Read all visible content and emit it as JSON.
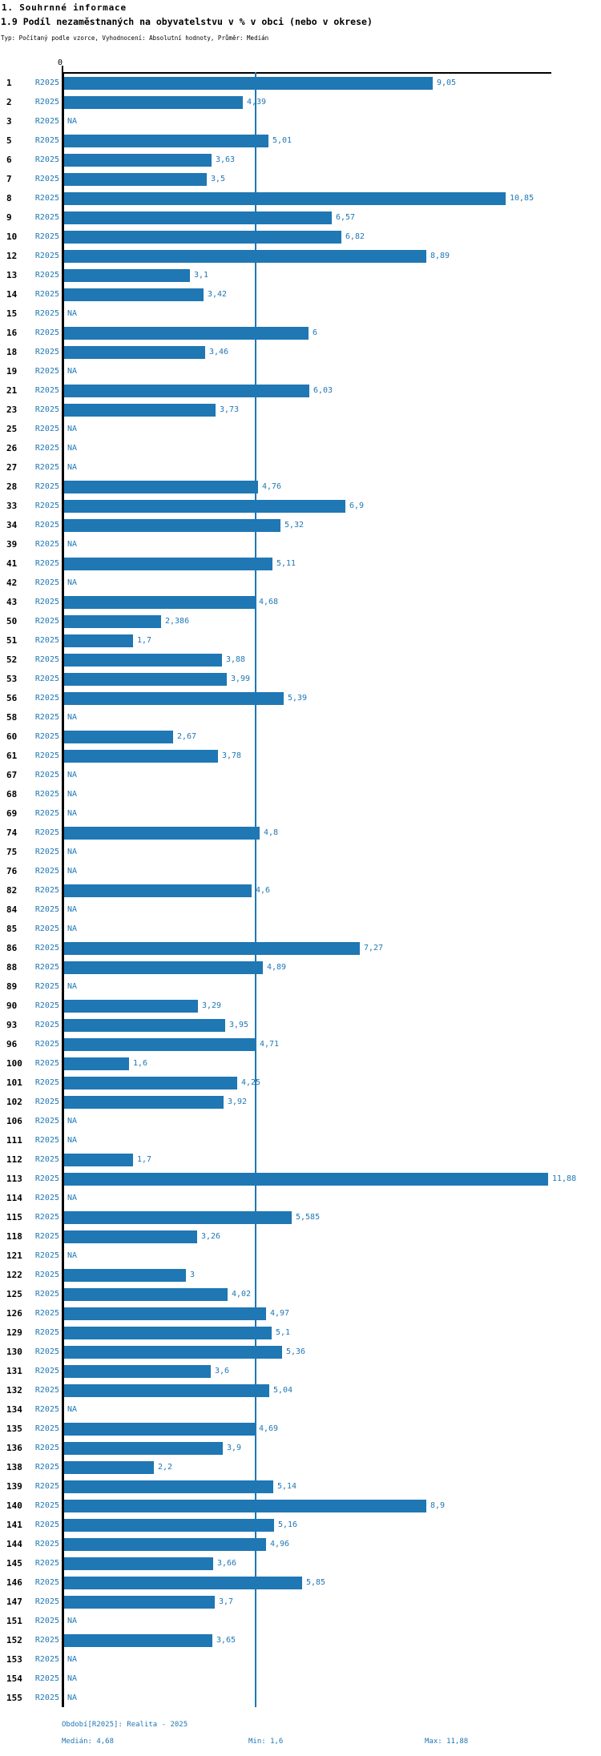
{
  "header": {
    "section_title": "1. Souhrnné informace",
    "chart_title": "1.9 Podíl nezaměstnaných na obyvatelstvu v % v obci (nebo v okrese)",
    "meta": "Typ: Počítaný podle vzorce, Vyhodnocení: Absolutní hodnoty, Průměr: Medián"
  },
  "colors": {
    "accent_blue": "#1f77b4",
    "axis_black": "#000000"
  },
  "chart_data": {
    "type": "bar",
    "orientation": "horizontal",
    "title": "1.9 Podíl nezaměstnaných na obyvatelstvu v % v obci (nebo v okrese)",
    "series_label": "R2025",
    "xlim": [
      0,
      12
    ],
    "x_ticks": [
      "0"
    ],
    "median": 4.68,
    "min": 1.6,
    "max": 11.88,
    "na_text": "NA",
    "legend_position": "none",
    "grid": false,
    "rows": [
      {
        "id": "1",
        "label": "9,05",
        "value": 9.05
      },
      {
        "id": "2",
        "label": "4,39",
        "value": 4.39
      },
      {
        "id": "3",
        "label": "NA",
        "value": null
      },
      {
        "id": "5",
        "label": "5,01",
        "value": 5.01
      },
      {
        "id": "6",
        "label": "3,63",
        "value": 3.63
      },
      {
        "id": "7",
        "label": "3,5",
        "value": 3.5
      },
      {
        "id": "8",
        "label": "10,85",
        "value": 10.85
      },
      {
        "id": "9",
        "label": "6,57",
        "value": 6.57
      },
      {
        "id": "10",
        "label": "6,82",
        "value": 6.82
      },
      {
        "id": "12",
        "label": "8,89",
        "value": 8.89
      },
      {
        "id": "13",
        "label": "3,1",
        "value": 3.1
      },
      {
        "id": "14",
        "label": "3,42",
        "value": 3.42
      },
      {
        "id": "15",
        "label": "NA",
        "value": null
      },
      {
        "id": "16",
        "label": "6",
        "value": 6
      },
      {
        "id": "18",
        "label": "3,46",
        "value": 3.46
      },
      {
        "id": "19",
        "label": "NA",
        "value": null
      },
      {
        "id": "21",
        "label": "6,03",
        "value": 6.03
      },
      {
        "id": "23",
        "label": "3,73",
        "value": 3.73
      },
      {
        "id": "25",
        "label": "NA",
        "value": null
      },
      {
        "id": "26",
        "label": "NA",
        "value": null
      },
      {
        "id": "27",
        "label": "NA",
        "value": null
      },
      {
        "id": "28",
        "label": "4,76",
        "value": 4.76
      },
      {
        "id": "33",
        "label": "6,9",
        "value": 6.9
      },
      {
        "id": "34",
        "label": "5,32",
        "value": 5.32
      },
      {
        "id": "39",
        "label": "NA",
        "value": null
      },
      {
        "id": "41",
        "label": "5,11",
        "value": 5.11
      },
      {
        "id": "42",
        "label": "NA",
        "value": null
      },
      {
        "id": "43",
        "label": "4,68",
        "value": 4.68
      },
      {
        "id": "50",
        "label": "2,386",
        "value": 2.386
      },
      {
        "id": "51",
        "label": "1,7",
        "value": 1.7
      },
      {
        "id": "52",
        "label": "3,88",
        "value": 3.88
      },
      {
        "id": "53",
        "label": "3,99",
        "value": 3.99
      },
      {
        "id": "56",
        "label": "5,39",
        "value": 5.39
      },
      {
        "id": "58",
        "label": "NA",
        "value": null
      },
      {
        "id": "60",
        "label": "2,67",
        "value": 2.67
      },
      {
        "id": "61",
        "label": "3,78",
        "value": 3.78
      },
      {
        "id": "67",
        "label": "NA",
        "value": null
      },
      {
        "id": "68",
        "label": "NA",
        "value": null
      },
      {
        "id": "69",
        "label": "NA",
        "value": null
      },
      {
        "id": "74",
        "label": "4,8",
        "value": 4.8
      },
      {
        "id": "75",
        "label": "NA",
        "value": null
      },
      {
        "id": "76",
        "label": "NA",
        "value": null
      },
      {
        "id": "82",
        "label": "4,6",
        "value": 4.6
      },
      {
        "id": "84",
        "label": "NA",
        "value": null
      },
      {
        "id": "85",
        "label": "NA",
        "value": null
      },
      {
        "id": "86",
        "label": "7,27",
        "value": 7.27
      },
      {
        "id": "88",
        "label": "4,89",
        "value": 4.89
      },
      {
        "id": "89",
        "label": "NA",
        "value": null
      },
      {
        "id": "90",
        "label": "3,29",
        "value": 3.29
      },
      {
        "id": "93",
        "label": "3,95",
        "value": 3.95
      },
      {
        "id": "96",
        "label": "4,71",
        "value": 4.71
      },
      {
        "id": "100",
        "label": "1,6",
        "value": 1.6
      },
      {
        "id": "101",
        "label": "4,25",
        "value": 4.25
      },
      {
        "id": "102",
        "label": "3,92",
        "value": 3.92
      },
      {
        "id": "106",
        "label": "NA",
        "value": null
      },
      {
        "id": "111",
        "label": "NA",
        "value": null
      },
      {
        "id": "112",
        "label": "1,7",
        "value": 1.7
      },
      {
        "id": "113",
        "label": "11,88",
        "value": 11.88
      },
      {
        "id": "114",
        "label": "NA",
        "value": null
      },
      {
        "id": "115",
        "label": "5,585",
        "value": 5.585
      },
      {
        "id": "118",
        "label": "3,26",
        "value": 3.26
      },
      {
        "id": "121",
        "label": "NA",
        "value": null
      },
      {
        "id": "122",
        "label": "3",
        "value": 3
      },
      {
        "id": "125",
        "label": "4,02",
        "value": 4.02
      },
      {
        "id": "126",
        "label": "4,97",
        "value": 4.97
      },
      {
        "id": "129",
        "label": "5,1",
        "value": 5.1
      },
      {
        "id": "130",
        "label": "5,36",
        "value": 5.36
      },
      {
        "id": "131",
        "label": "3,6",
        "value": 3.6
      },
      {
        "id": "132",
        "label": "5,04",
        "value": 5.04
      },
      {
        "id": "134",
        "label": "NA",
        "value": null
      },
      {
        "id": "135",
        "label": "4,69",
        "value": 4.69
      },
      {
        "id": "136",
        "label": "3,9",
        "value": 3.9
      },
      {
        "id": "138",
        "label": "2,2",
        "value": 2.2
      },
      {
        "id": "139",
        "label": "5,14",
        "value": 5.14
      },
      {
        "id": "140",
        "label": "8,9",
        "value": 8.9
      },
      {
        "id": "141",
        "label": "5,16",
        "value": 5.16
      },
      {
        "id": "144",
        "label": "4,96",
        "value": 4.96
      },
      {
        "id": "145",
        "label": "3,66",
        "value": 3.66
      },
      {
        "id": "146",
        "label": "5,85",
        "value": 5.85
      },
      {
        "id": "147",
        "label": "3,7",
        "value": 3.7
      },
      {
        "id": "151",
        "label": "NA",
        "value": null
      },
      {
        "id": "152",
        "label": "3,65",
        "value": 3.65
      },
      {
        "id": "153",
        "label": "NA",
        "value": null
      },
      {
        "id": "154",
        "label": "NA",
        "value": null
      },
      {
        "id": "155",
        "label": "NA",
        "value": null
      }
    ]
  },
  "footer": {
    "period": "Období[R2025]: Realita - 2025",
    "median_label": "Medián: 4,68",
    "min_label": "Min: 1,6",
    "max_label": "Max: 11,88"
  }
}
